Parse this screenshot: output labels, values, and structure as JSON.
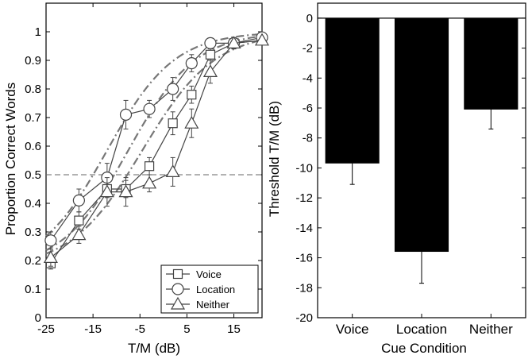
{
  "chart_data": [
    {
      "type": "line",
      "xlabel": "T/M (dB)",
      "ylabel": "Proportion Correct Words",
      "xlim": [
        -25,
        21
      ],
      "ylim": [
        0,
        1.1
      ],
      "xticks": [
        "-25",
        "-15",
        "-5",
        "5",
        "15"
      ],
      "yticks": [
        "0",
        "0.1",
        "0.2",
        "0.3",
        "0.4",
        "0.5",
        "0.6",
        "0.7",
        "0.8",
        "0.9",
        "1"
      ],
      "x": [
        -24,
        -18,
        -12,
        -8,
        -3,
        2,
        6,
        10,
        15,
        21
      ],
      "reference_line": {
        "y": 0.5,
        "style": "dashed"
      },
      "legend_position": "bottom-right",
      "series": [
        {
          "name": "Voice",
          "marker": "square",
          "y": [
            0.19,
            0.34,
            0.45,
            0.45,
            0.53,
            0.68,
            0.78,
            0.92,
            0.96,
            0.97
          ],
          "err": [
            0.02,
            0.03,
            0.03,
            0.03,
            0.03,
            0.04,
            0.03,
            0.02,
            0.01,
            0.01
          ]
        },
        {
          "name": "Location",
          "marker": "circle",
          "y": [
            0.27,
            0.41,
            0.49,
            0.71,
            0.73,
            0.8,
            0.89,
            0.96,
            0.96,
            0.98
          ],
          "err": [
            0.03,
            0.04,
            0.05,
            0.05,
            0.03,
            0.04,
            0.03,
            0.01,
            0.01,
            0.01
          ]
        },
        {
          "name": "Neither",
          "marker": "triangle",
          "y": [
            0.21,
            0.29,
            0.44,
            0.44,
            0.47,
            0.51,
            0.68,
            0.86,
            0.96,
            0.97
          ],
          "err": [
            0.03,
            0.03,
            0.05,
            0.05,
            0.03,
            0.05,
            0.05,
            0.04,
            0.02,
            0.01
          ]
        }
      ],
      "fit_curves": [
        {
          "style": "dash-dot",
          "midpoint": -12,
          "slope": 0.14
        },
        {
          "style": "dash-dot",
          "midpoint": -7.5,
          "slope": 0.14
        },
        {
          "style": "dash-dot",
          "midpoint": -4.5,
          "slope": 0.13
        }
      ]
    },
    {
      "type": "bar",
      "xlabel": "Cue Condition",
      "ylabel": "Threshold T/M (dB)",
      "categories": [
        "Voice",
        "Location",
        "Neither"
      ],
      "values": [
        -9.7,
        -15.6,
        -6.1
      ],
      "err": [
        1.4,
        2.1,
        1.3
      ],
      "ylim": [
        -20,
        1
      ],
      "yticks": [
        "0",
        "-2",
        "-4",
        "-6",
        "-8",
        "-10",
        "-12",
        "-14",
        "-16",
        "-18",
        "-20"
      ],
      "bar_color": "#000000"
    }
  ]
}
